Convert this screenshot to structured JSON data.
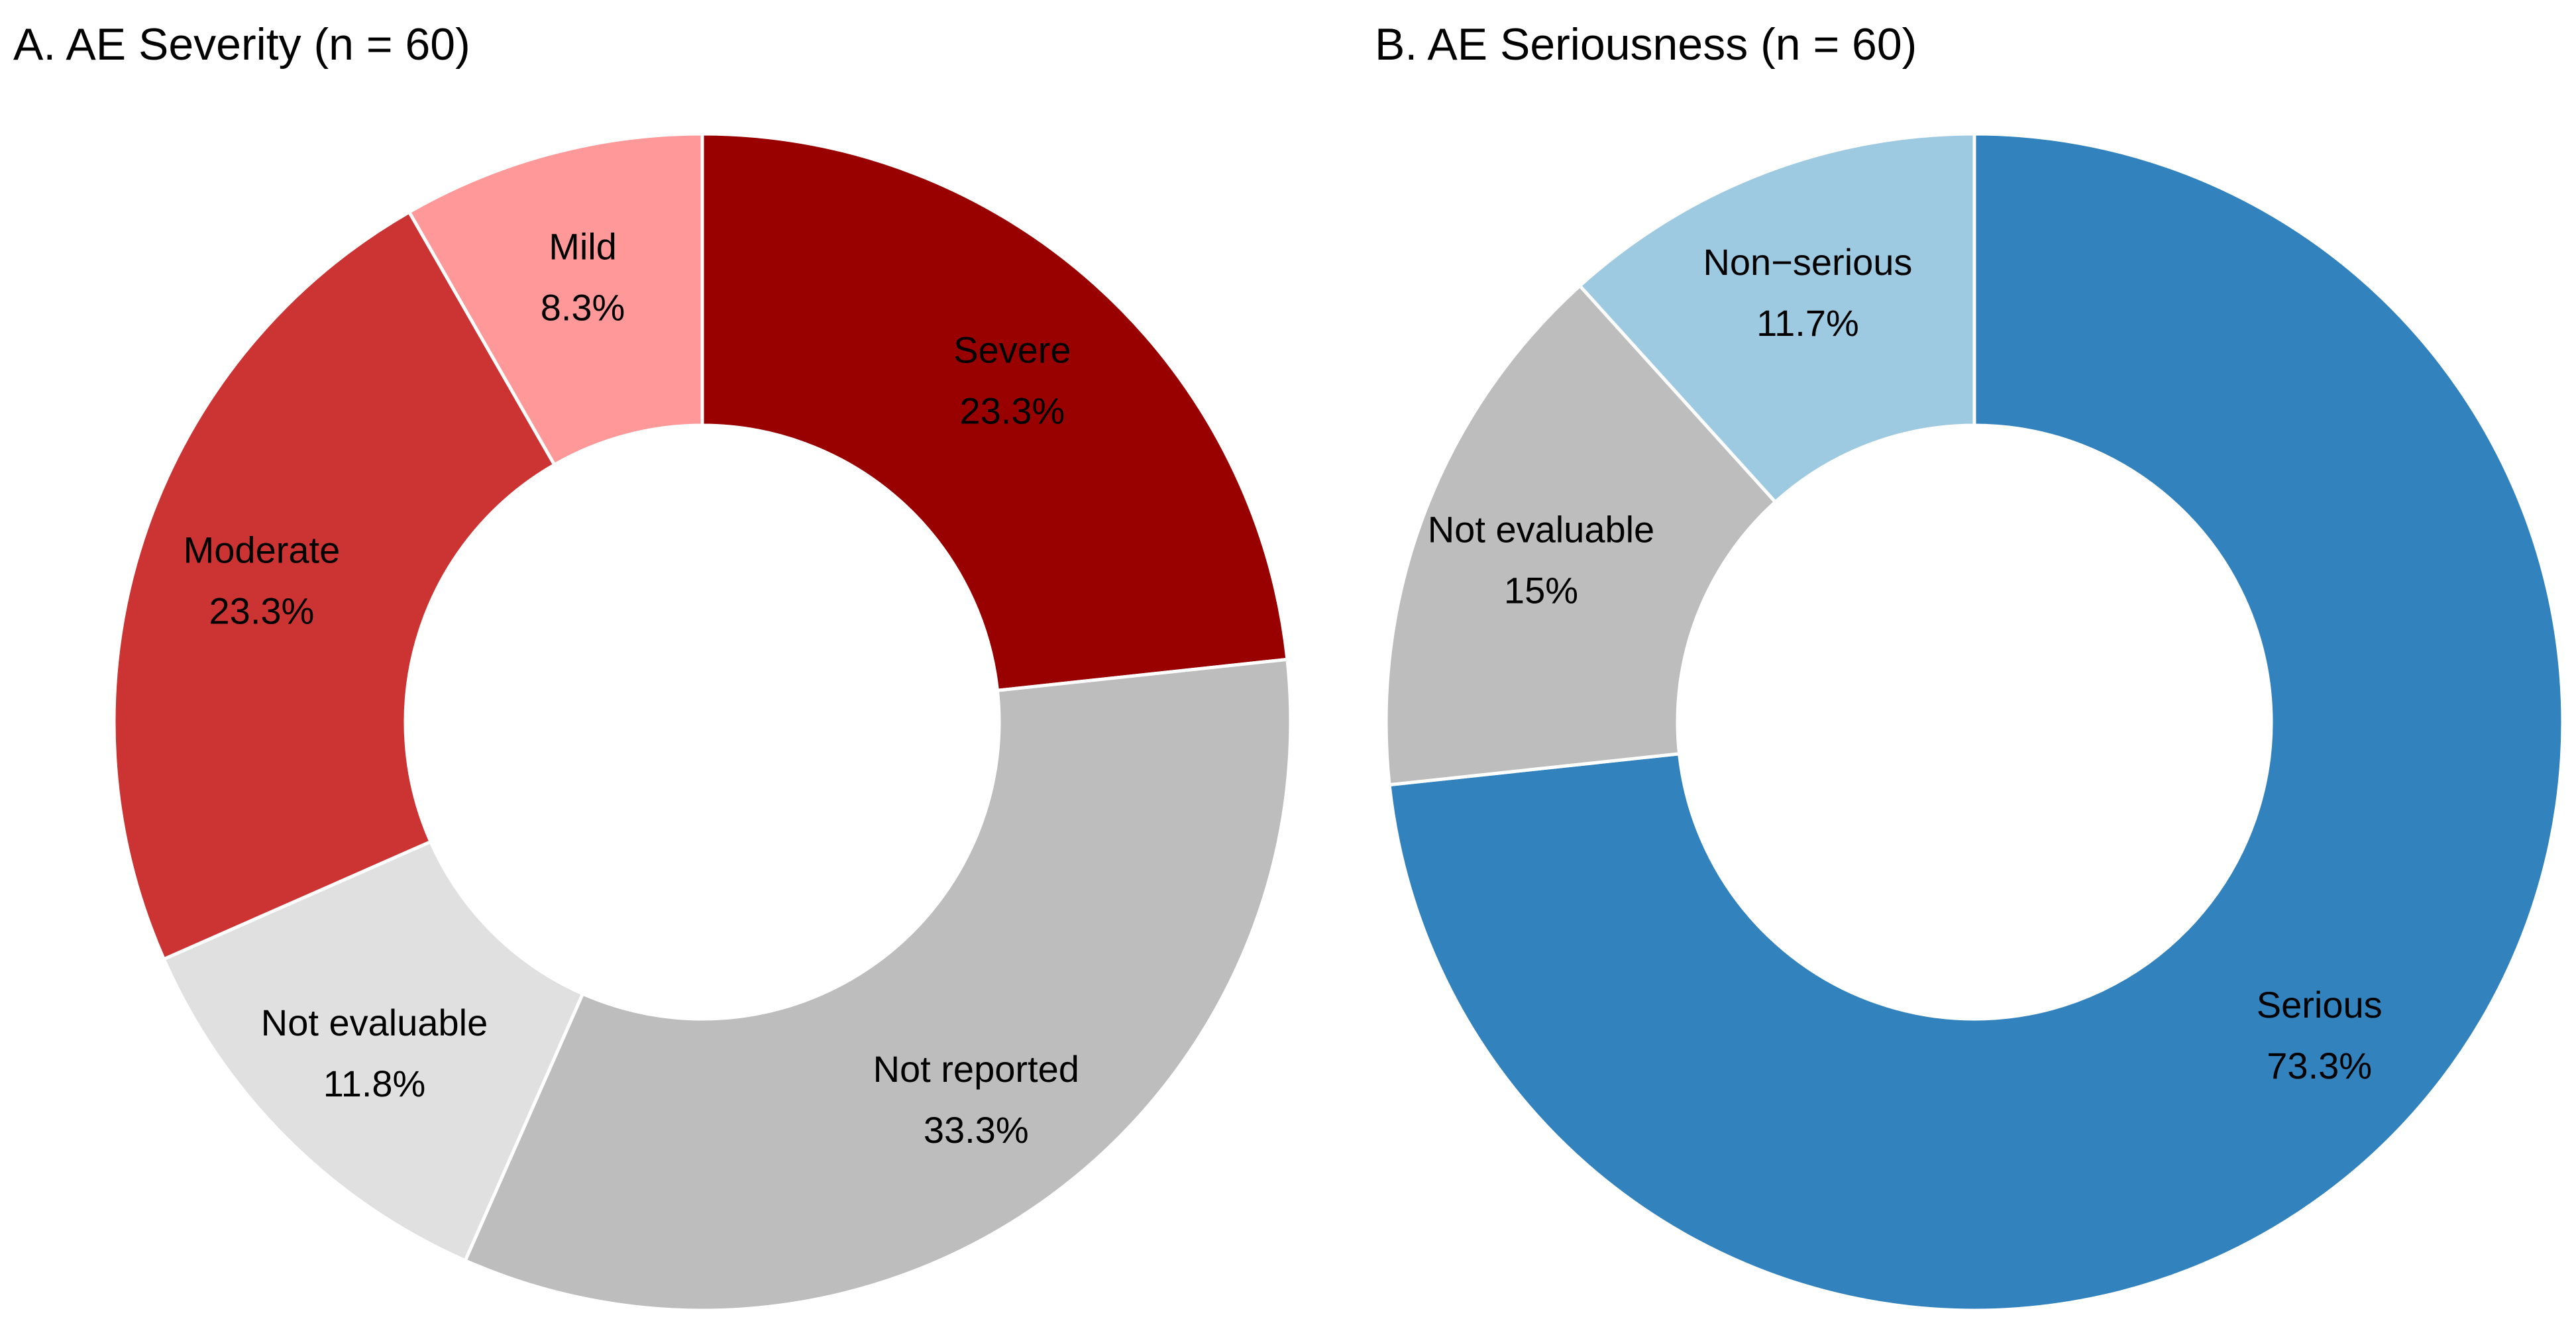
{
  "chart_data": [
    {
      "type": "pie",
      "donut": true,
      "title": "A. AE Severity (n = 60)",
      "start": "12 o'clock",
      "direction": "clockwise",
      "slices": [
        {
          "label": "Severe",
          "value_label": "23.3%",
          "value": 23.3,
          "color": "#990000"
        },
        {
          "label": "Not reported",
          "value_label": "33.3%",
          "value": 33.3,
          "color": "#bdbdbd"
        },
        {
          "label": "Not evaluable",
          "value_label": "11.8%",
          "value": 11.8,
          "color": "#e0e0e0"
        },
        {
          "label": "Moderate",
          "value_label": "23.3%",
          "value": 23.3,
          "color": "#cc3333"
        },
        {
          "label": "Mild",
          "value_label": "8.3%",
          "value": 8.3,
          "color": "#ff9999"
        }
      ]
    },
    {
      "type": "pie",
      "donut": true,
      "title": "B. AE Seriousness (n = 60)",
      "start": "12 o'clock",
      "direction": "clockwise",
      "slices": [
        {
          "label": "Serious",
          "value_label": "73.3%",
          "value": 73.3,
          "color": "#3182bd"
        },
        {
          "label": "Not evaluable",
          "value_label": "15%",
          "value": 15,
          "color": "#bdbdbd"
        },
        {
          "label": "Non−serious",
          "value_label": "11.7%",
          "value": 11.7,
          "color": "#9ecae1"
        }
      ]
    }
  ]
}
